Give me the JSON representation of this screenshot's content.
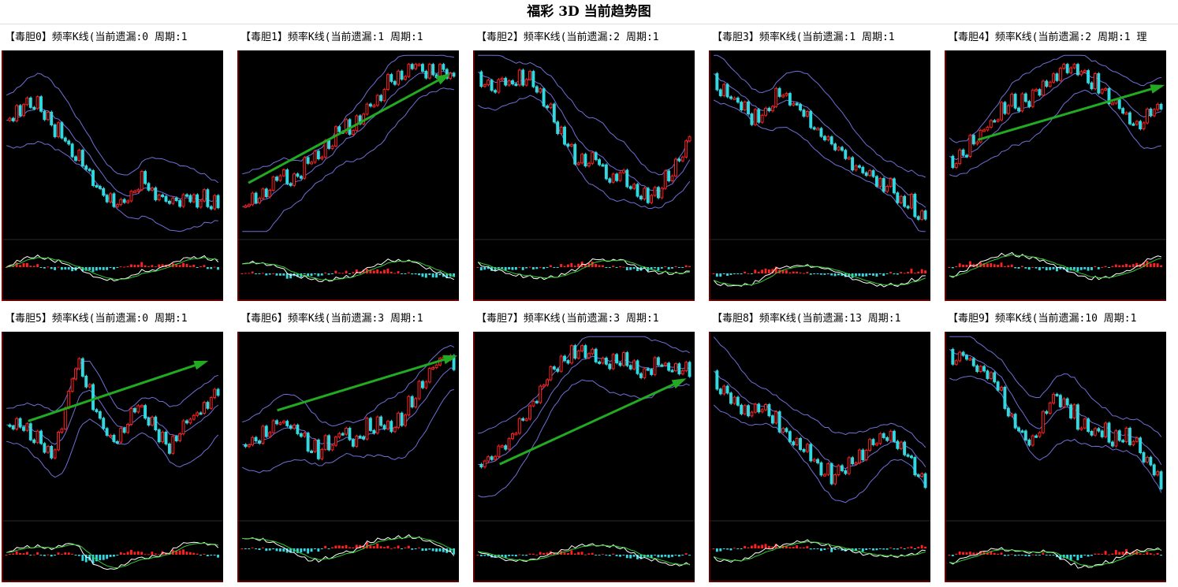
{
  "title": "福彩 3D 当前趋势图",
  "colors": {
    "background": "#000000",
    "up": "#ff2020",
    "down": "#33d8e0",
    "frame": "#cc0000",
    "band": "#6f6fd8",
    "trend_arrow": "#22aa22",
    "macd_dif": "#ffffff",
    "macd_dea": "#33cc33"
  },
  "chart_data": [
    {
      "type": "candlestick",
      "label": "【毒胆0】频率K线(当前遗漏:0 周期:1",
      "trend": [
        0.62,
        0.68,
        0.74,
        0.7,
        0.62,
        0.54,
        0.46,
        0.38,
        0.28,
        0.2,
        0.18,
        0.22,
        0.3,
        0.25,
        0.2,
        0.18,
        0.22,
        0.16,
        0.2,
        0.14
      ],
      "has_arrow": false
    },
    {
      "type": "candlestick",
      "label": "【毒胆1】频率K线(当前遗漏:1 周期:1",
      "trend": [
        0.15,
        0.2,
        0.25,
        0.32,
        0.3,
        0.38,
        0.45,
        0.5,
        0.58,
        0.62,
        0.7,
        0.78,
        0.86,
        0.92,
        0.95,
        0.9,
        0.93,
        0.88
      ],
      "has_arrow": true,
      "arrow": [
        [
          0.05,
          0.28
        ],
        [
          0.95,
          0.88
        ]
      ]
    },
    {
      "type": "candlestick",
      "label": "【毒胆2】频率K线(当前遗漏:2 周期:1",
      "trend": [
        0.85,
        0.82,
        0.86,
        0.84,
        0.88,
        0.83,
        0.7,
        0.55,
        0.45,
        0.38,
        0.42,
        0.3,
        0.35,
        0.28,
        0.2,
        0.22,
        0.3,
        0.42,
        0.55
      ],
      "has_arrow": false
    },
    {
      "type": "candlestick",
      "label": "【毒胆3】频率K线(当前遗漏:1 周期:1",
      "trend": [
        0.85,
        0.8,
        0.75,
        0.68,
        0.62,
        0.72,
        0.78,
        0.74,
        0.68,
        0.6,
        0.55,
        0.5,
        0.42,
        0.36,
        0.33,
        0.3,
        0.25,
        0.2,
        0.15,
        0.1
      ],
      "has_arrow": false
    },
    {
      "type": "candlestick",
      "label": "【毒胆4】频率K线(当前遗漏:2 周期:1 理",
      "trend": [
        0.4,
        0.45,
        0.52,
        0.6,
        0.68,
        0.75,
        0.72,
        0.8,
        0.85,
        0.92,
        0.95,
        0.88,
        0.82,
        0.75,
        0.68,
        0.62,
        0.66,
        0.72
      ],
      "has_arrow": true,
      "arrow": [
        [
          0.15,
          0.52
        ],
        [
          0.98,
          0.82
        ]
      ]
    },
    {
      "type": "candlestick",
      "label": "【毒胆5】频率K线(当前遗漏:0 周期:1",
      "trend": [
        0.48,
        0.52,
        0.45,
        0.4,
        0.35,
        0.6,
        0.88,
        0.7,
        0.52,
        0.4,
        0.45,
        0.62,
        0.55,
        0.45,
        0.38,
        0.5,
        0.55,
        0.62,
        0.7
      ],
      "has_arrow": true,
      "arrow": [
        [
          0.12,
          0.52
        ],
        [
          0.92,
          0.85
        ]
      ]
    },
    {
      "type": "candlestick",
      "label": "【毒胆6】频率K线(当前遗漏:3 周期:1",
      "trend": [
        0.38,
        0.42,
        0.48,
        0.52,
        0.48,
        0.42,
        0.35,
        0.4,
        0.46,
        0.42,
        0.48,
        0.52,
        0.5,
        0.56,
        0.68,
        0.8,
        0.88,
        0.85
      ],
      "has_arrow": true,
      "arrow": [
        [
          0.18,
          0.58
        ],
        [
          0.98,
          0.88
        ]
      ]
    },
    {
      "type": "candlestick",
      "label": "【毒胆7】频率K线(当前遗漏:3 周期:1",
      "trend": [
        0.28,
        0.32,
        0.4,
        0.52,
        0.65,
        0.78,
        0.88,
        0.92,
        0.9,
        0.85,
        0.86,
        0.82,
        0.8,
        0.84,
        0.8,
        0.82
      ],
      "has_arrow": true,
      "arrow": [
        [
          0.12,
          0.28
        ],
        [
          0.95,
          0.75
        ]
      ]
    },
    {
      "type": "candlestick",
      "label": "【毒胆8】频率K线(当前遗漏:13 周期:1",
      "trend": [
        0.75,
        0.7,
        0.62,
        0.55,
        0.62,
        0.55,
        0.48,
        0.4,
        0.35,
        0.28,
        0.22,
        0.25,
        0.3,
        0.36,
        0.42,
        0.46,
        0.38,
        0.28,
        0.15
      ],
      "has_arrow": false
    },
    {
      "type": "candlestick",
      "label": "【毒胆9】频率K线(当前遗漏:10 周期:1",
      "trend": [
        0.88,
        0.9,
        0.85,
        0.8,
        0.72,
        0.58,
        0.45,
        0.38,
        0.55,
        0.68,
        0.62,
        0.52,
        0.45,
        0.48,
        0.42,
        0.46,
        0.4,
        0.3,
        0.15
      ],
      "has_arrow": false
    }
  ]
}
